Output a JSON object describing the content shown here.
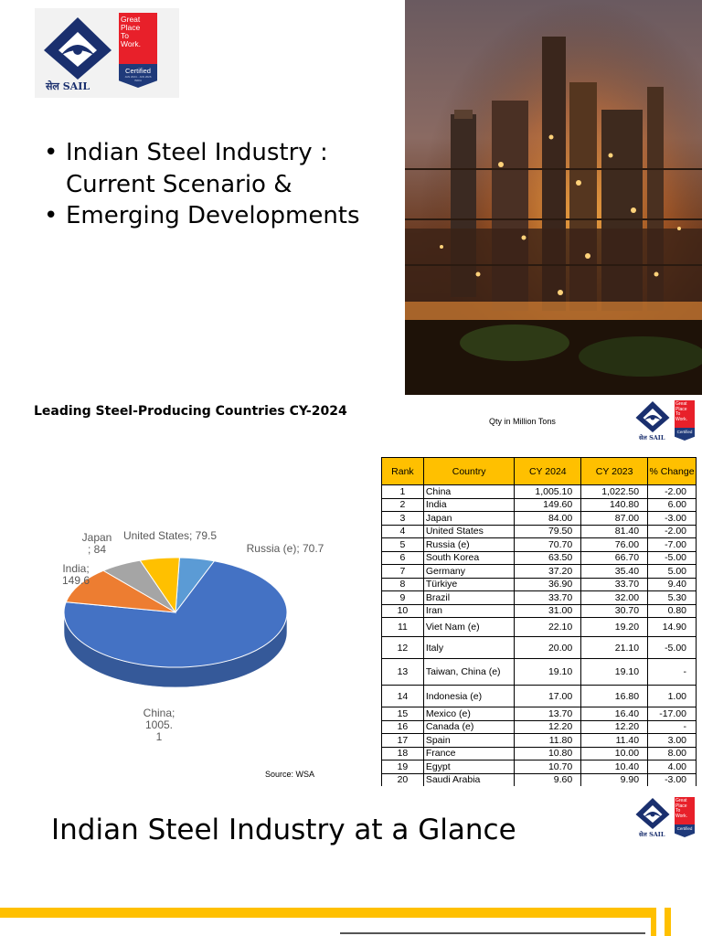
{
  "slide1": {
    "logo": {
      "sail_text": "सेल SAIL",
      "gptw_lines": [
        "Great",
        "Place",
        "To",
        "Work."
      ],
      "gptw_badge": "Certified",
      "gptw_small": "JAN 2024 - JAN 2026",
      "gptw_country": "INDIA"
    },
    "bullets": [
      "Indian Steel Industry : Current Scenario &",
      "Emerging Developments"
    ],
    "photo": "steel-plant-night-photo"
  },
  "slide2": {
    "title": "Leading Steel-Producing Countries  CY-2024",
    "qty_note": "Qty in Million Tons",
    "source": "Source: WSA",
    "logo": {
      "sail_text": "सेल SAIL",
      "gptw_lines": [
        "Great",
        "Place",
        "To",
        "Work."
      ],
      "gptw_badge": "Certified"
    },
    "table": {
      "headers": [
        "Rank",
        "Country",
        "CY 2024",
        "CY 2023",
        "% Change"
      ],
      "rows": [
        [
          "1",
          "China",
          "1,005.10",
          "1,022.50",
          "-2.00"
        ],
        [
          "2",
          "India",
          "149.60",
          "140.80",
          "6.00"
        ],
        [
          "3",
          "Japan",
          "84.00",
          "87.00",
          "-3.00"
        ],
        [
          "4",
          "United States",
          "79.50",
          "81.40",
          "-2.00"
        ],
        [
          "5",
          "Russia (e)",
          "70.70",
          "76.00",
          "-7.00"
        ],
        [
          "6",
          "South Korea",
          "63.50",
          "66.70",
          "-5.00"
        ],
        [
          "7",
          "Germany",
          "37.20",
          "35.40",
          "5.00"
        ],
        [
          "8",
          "Türkiye",
          "36.90",
          "33.70",
          "9.40"
        ],
        [
          "9",
          "Brazil",
          "33.70",
          "32.00",
          "5.30"
        ],
        [
          "10",
          "Iran",
          "31.00",
          "30.70",
          "0.80"
        ],
        [
          "11",
          "Viet Nam (e)",
          "22.10",
          "19.20",
          "14.90"
        ],
        [
          "12",
          "Italy",
          "20.00",
          "21.10",
          "-5.00"
        ],
        [
          "13",
          "Taiwan, China (e)",
          "19.10",
          "19.10",
          "-"
        ],
        [
          "14",
          "Indonesia (e)",
          "17.00",
          "16.80",
          "1.00"
        ],
        [
          "15",
          "Mexico (e)",
          "13.70",
          "16.40",
          "-17.00"
        ],
        [
          "16",
          "Canada (e)",
          "12.20",
          "12.20",
          "-"
        ],
        [
          "17",
          "Spain",
          "11.80",
          "11.40",
          "3.00"
        ],
        [
          "18",
          "France",
          "10.80",
          "10.00",
          "8.00"
        ],
        [
          "19",
          "Egypt",
          "10.70",
          "10.40",
          "4.00"
        ],
        [
          "20",
          "Saudi Arabia",
          "9.60",
          "9.90",
          "-3.00"
        ]
      ]
    }
  },
  "chart_data": {
    "type": "pie",
    "title": "",
    "slices": [
      {
        "label": "China",
        "value": 1005.1,
        "color": "#4472c4",
        "display": [
          "China;",
          "1005.",
          "1"
        ]
      },
      {
        "label": "India",
        "value": 149.6,
        "color": "#ed7d31",
        "display": [
          "India;",
          "149.6"
        ]
      },
      {
        "label": "Japan",
        "value": 84,
        "color": "#a5a5a5",
        "display": [
          "Japan",
          "; 84"
        ]
      },
      {
        "label": "United States",
        "value": 79.5,
        "color": "#ffc000",
        "display": [
          "United States; 79.5"
        ]
      },
      {
        "label": "Russia (e)",
        "value": 70.7,
        "color": "#5b9bd5",
        "display": [
          "Russia (e); 70.7"
        ]
      }
    ]
  },
  "slide3": {
    "title": "Indian Steel Industry at a Glance",
    "logo": {
      "sail_text": "सेल SAIL",
      "gptw_lines": [
        "Great",
        "Place",
        "To",
        "Work."
      ],
      "gptw_badge": "Certified"
    }
  }
}
